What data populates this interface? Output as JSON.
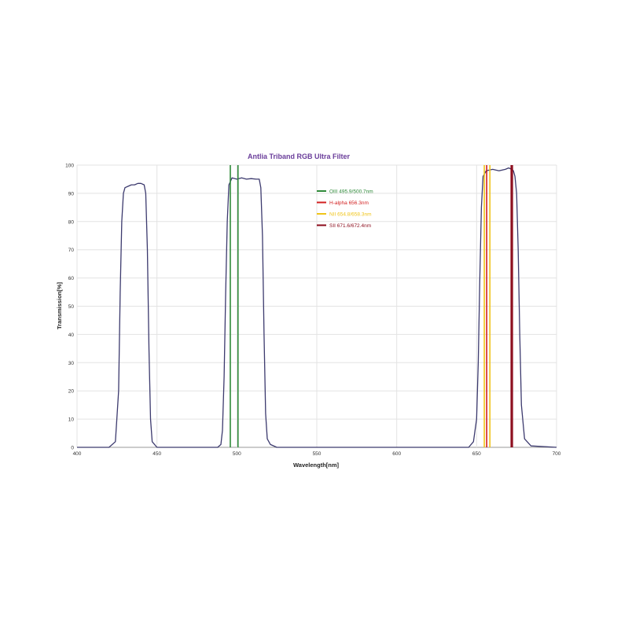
{
  "chart_data": {
    "type": "line",
    "title": "Antlia Triband RGB Ultra Filter",
    "xlabel": "Wavelength[nm]",
    "ylabel": "Transmission[%]",
    "xlim": [
      400,
      700
    ],
    "ylim": [
      0,
      100
    ],
    "x_ticks": [
      400,
      450,
      500,
      550,
      600,
      650,
      700
    ],
    "y_ticks": [
      0,
      10,
      20,
      30,
      40,
      50,
      60,
      70,
      80,
      90,
      100
    ],
    "grid": true,
    "legend_position": "top-center",
    "colors": {
      "transmission": "#3c3a6e",
      "oiii": "#2f8a3a",
      "halpha": "#d21f1f",
      "nii": "#f0c419",
      "sii": "#8b0a1a",
      "title": "#6a3d9a",
      "grid": "#e3e3e3"
    },
    "series": [
      {
        "x": [
          400,
          420,
          424,
          426,
          427,
          428,
          429,
          430,
          432,
          434,
          436,
          438,
          440,
          442,
          443,
          444,
          445,
          446,
          447,
          450,
          470,
          488,
          490,
          491,
          492,
          493,
          494,
          495,
          497,
          500,
          503,
          506,
          509,
          512,
          514,
          515,
          516,
          517,
          518,
          519,
          521,
          525,
          550,
          600,
          645,
          648,
          650,
          651,
          652,
          653,
          654,
          656,
          660,
          664,
          668,
          670,
          672,
          673,
          674,
          675,
          676,
          677,
          678,
          680,
          684,
          700
        ],
        "y": [
          0,
          0,
          2,
          20,
          55,
          80,
          90,
          92,
          92.5,
          93,
          93,
          93.5,
          93.5,
          93,
          90,
          70,
          35,
          10,
          2,
          0,
          0,
          0,
          1,
          6,
          25,
          55,
          80,
          93,
          95.5,
          95,
          95.5,
          95,
          95.2,
          95,
          95,
          92,
          75,
          40,
          12,
          3,
          1,
          0,
          0,
          0,
          0,
          2,
          10,
          30,
          60,
          85,
          96,
          98,
          98.5,
          98,
          98.5,
          99,
          98.5,
          98,
          96,
          90,
          70,
          40,
          15,
          3,
          0.5,
          0
        ]
      }
    ],
    "emission_lines": [
      {
        "label": "OIII 495.9/500.7nm",
        "color_key": "oiii",
        "x": [
          495.9,
          500.7
        ]
      },
      {
        "label": "H-alpha 656.3nm",
        "color_key": "halpha",
        "x": [
          656.3
        ]
      },
      {
        "label": "NII 654.8/658.3nm",
        "color_key": "nii",
        "x": [
          654.8,
          658.3
        ]
      },
      {
        "label": "SII 671.6/672.4nm",
        "color_key": "sii",
        "x": [
          671.6,
          672.4
        ]
      }
    ]
  }
}
